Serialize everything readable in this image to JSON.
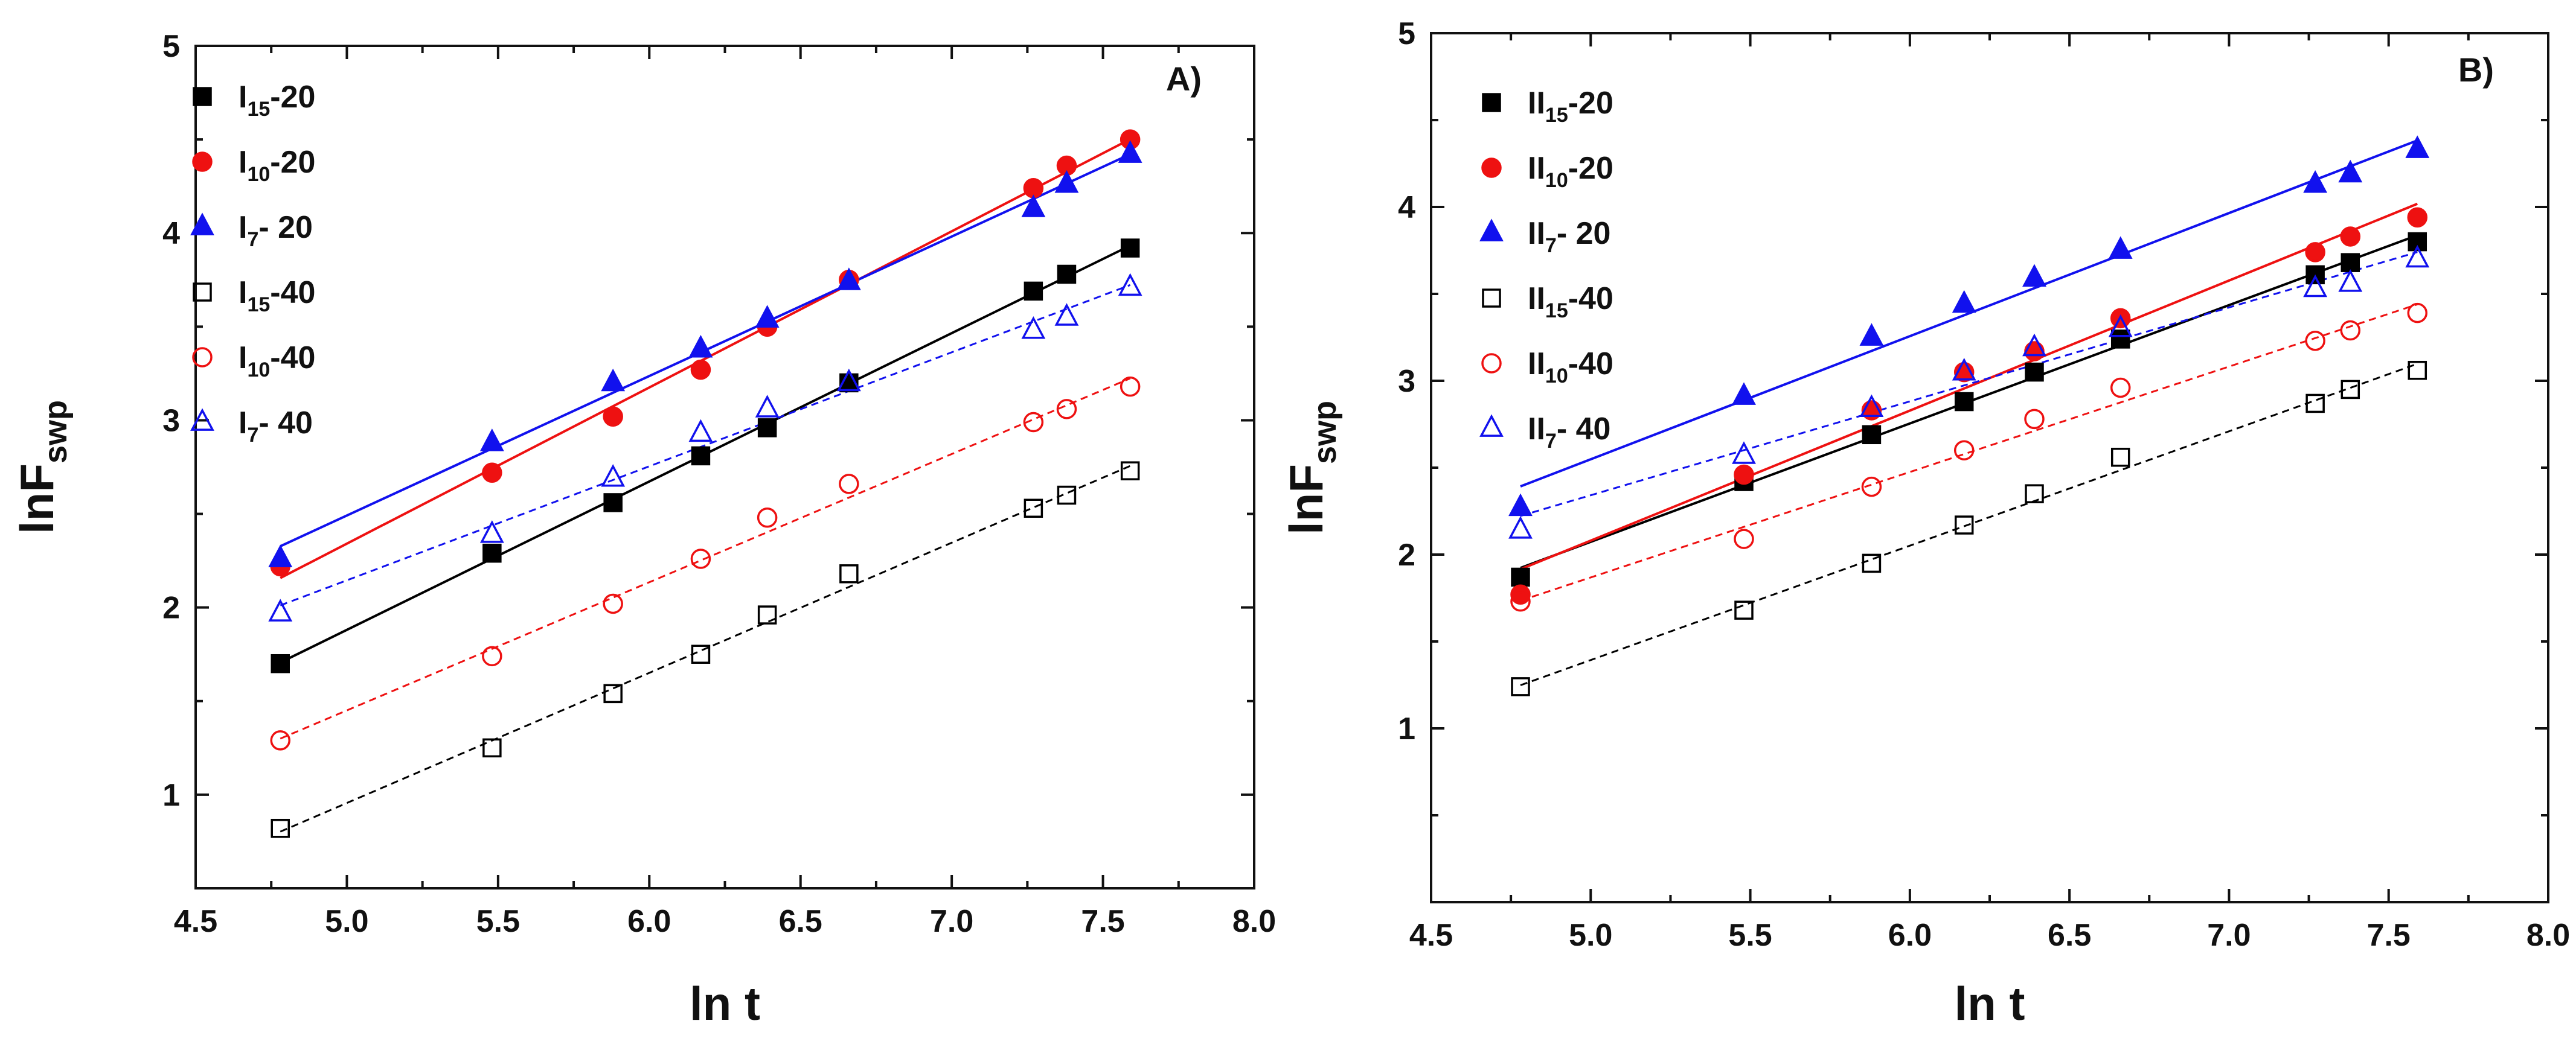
{
  "chart_data": [
    {
      "type": "scatter",
      "panel_label": "A)",
      "xlabel": "ln t",
      "ylabel": {
        "main": "lnF",
        "sub": "swp"
      },
      "xlim": [
        4.5,
        8.0
      ],
      "ylim": [
        0.5,
        5.0
      ],
      "xticks": [
        4.5,
        5.0,
        5.5,
        6.0,
        6.5,
        7.0,
        7.5,
        8.0
      ],
      "xtick_labels": [
        "4.5",
        "5.0",
        "5.5",
        "6.0",
        "6.5",
        "7.0",
        "7.5",
        "8.0"
      ],
      "yticks": [
        1,
        2,
        3,
        4,
        5
      ],
      "ytick_labels": [
        "1",
        "2",
        "3",
        "4",
        "5"
      ],
      "legend_position": "top-left",
      "x": [
        4.78,
        5.48,
        5.88,
        6.17,
        6.39,
        6.66,
        7.27,
        7.38,
        7.59
      ],
      "series": [
        {
          "name": "I15-20",
          "label_main": "I",
          "label_sub": "15",
          "label_rest": "-20",
          "marker": "square",
          "filled": true,
          "color": "#000000",
          "line": "solid",
          "values": [
            1.7,
            2.29,
            2.56,
            2.81,
            2.96,
            3.2,
            3.69,
            3.78,
            3.92
          ]
        },
        {
          "name": "I10-20",
          "label_main": "I",
          "label_sub": "10",
          "label_rest": "-20",
          "marker": "circle",
          "filled": true,
          "color": "#ee1111",
          "line": "solid",
          "values": [
            2.22,
            2.72,
            3.02,
            3.27,
            3.5,
            3.75,
            4.24,
            4.36,
            4.5
          ]
        },
        {
          "name": "I7- 20",
          "label_main": "I",
          "label_sub": "7",
          "label_rest": "- 20",
          "marker": "triangle",
          "filled": true,
          "color": "#1111ee",
          "line": "solid",
          "values": [
            2.26,
            2.88,
            3.2,
            3.38,
            3.54,
            3.74,
            4.13,
            4.26,
            4.42
          ]
        },
        {
          "name": "I15-40",
          "label_main": "I",
          "label_sub": "15",
          "label_rest": "-40",
          "marker": "square",
          "filled": false,
          "color": "#000000",
          "line": "dashed",
          "values": [
            0.82,
            1.25,
            1.54,
            1.75,
            1.96,
            2.18,
            2.53,
            2.6,
            2.73
          ]
        },
        {
          "name": "I10-40",
          "label_main": "I",
          "label_sub": "10",
          "label_rest": "-40",
          "marker": "circle",
          "filled": false,
          "color": "#ee1111",
          "line": "dashed",
          "values": [
            1.29,
            1.74,
            2.02,
            2.26,
            2.48,
            2.66,
            2.99,
            3.06,
            3.18
          ]
        },
        {
          "name": "I7- 40",
          "label_main": "I",
          "label_sub": "7",
          "label_rest": "- 40",
          "marker": "triangle",
          "filled": false,
          "color": "#1111ee",
          "line": "dashed",
          "values": [
            1.97,
            2.39,
            2.69,
            2.93,
            3.06,
            3.2,
            3.48,
            3.55,
            3.71
          ]
        }
      ]
    },
    {
      "type": "scatter",
      "panel_label": "B)",
      "xlabel": "ln t",
      "ylabel": {
        "main": "lnF",
        "sub": "swp"
      },
      "xlim": [
        4.5,
        8.0
      ],
      "ylim": [
        0.0,
        5.0
      ],
      "xticks": [
        4.5,
        5.0,
        5.5,
        6.0,
        6.5,
        7.0,
        7.5,
        8.0
      ],
      "xtick_labels": [
        "4.5",
        "5.0",
        "5.5",
        "6.0",
        "6.5",
        "7.0",
        "7.5",
        "8.0"
      ],
      "yticks": [
        1,
        2,
        3,
        4,
        5
      ],
      "ytick_labels": [
        "1",
        "2",
        "3",
        "4",
        "5"
      ],
      "legend_position": "top-left",
      "x": [
        4.78,
        5.48,
        5.88,
        6.17,
        6.39,
        6.66,
        7.27,
        7.38,
        7.59
      ],
      "series": [
        {
          "name": "II15-20",
          "label_main": "II",
          "label_sub": "15",
          "label_rest": "-20",
          "marker": "square",
          "filled": true,
          "color": "#000000",
          "line": "solid",
          "values": [
            1.87,
            2.42,
            2.69,
            2.88,
            3.05,
            3.24,
            3.61,
            3.68,
            3.8
          ]
        },
        {
          "name": "II10-20",
          "label_main": "II",
          "label_sub": "10",
          "label_rest": "-20",
          "marker": "circle",
          "filled": true,
          "color": "#ee1111",
          "line": "solid",
          "values": [
            1.77,
            2.46,
            2.83,
            3.05,
            3.17,
            3.36,
            3.74,
            3.83,
            3.94
          ]
        },
        {
          "name": "II7- 20",
          "label_main": "II",
          "label_sub": "7",
          "label_rest": "- 20",
          "marker": "triangle",
          "filled": true,
          "color": "#1111ee",
          "line": "solid",
          "values": [
            2.27,
            2.91,
            3.25,
            3.44,
            3.59,
            3.75,
            4.13,
            4.19,
            4.33
          ]
        },
        {
          "name": "II15-40",
          "label_main": "II",
          "label_sub": "15",
          "label_rest": "-40",
          "marker": "square",
          "filled": false,
          "color": "#000000",
          "line": "dashed",
          "values": [
            1.24,
            1.68,
            1.95,
            2.17,
            2.35,
            2.56,
            2.87,
            2.95,
            3.06
          ]
        },
        {
          "name": "II10-40",
          "label_main": "II",
          "label_sub": "10",
          "label_rest": "-40",
          "marker": "circle",
          "filled": false,
          "color": "#ee1111",
          "line": "dashed",
          "values": [
            1.73,
            2.09,
            2.39,
            2.6,
            2.78,
            2.96,
            3.23,
            3.29,
            3.39
          ]
        },
        {
          "name": "II7- 40",
          "label_main": "II",
          "label_sub": "7",
          "label_rest": "- 40",
          "marker": "triangle",
          "filled": false,
          "color": "#1111ee",
          "line": "dashed",
          "values": [
            2.14,
            2.57,
            2.84,
            3.05,
            3.19,
            3.3,
            3.53,
            3.56,
            3.7
          ]
        }
      ]
    }
  ]
}
